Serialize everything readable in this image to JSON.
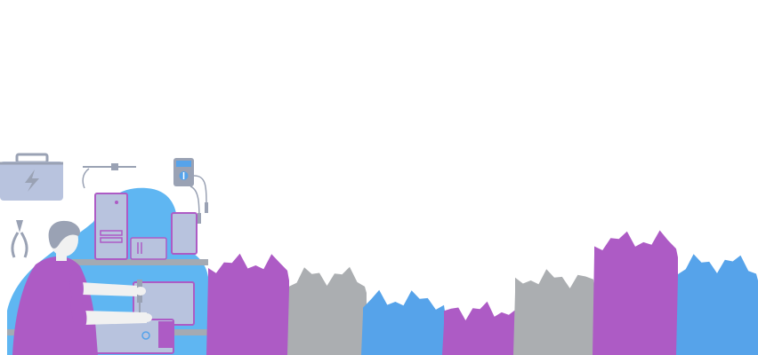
{
  "colors": {
    "purple": "#ad5bc5",
    "gray": "#abaeb1",
    "blue": "#56a3ea",
    "sky_blob": "#5fb6f2",
    "device_fill": "#b8c3de",
    "device_stroke": "#ad5bc5",
    "shelf": "#a4aab3",
    "skin": "#f1f1f1",
    "hair": "#9aa2b4",
    "toolbox": "#b8c3de",
    "tool_line": "#9aa2b4"
  },
  "illustration": {
    "icons": [
      "toolbox-icon",
      "lightning-bolt-icon",
      "soldering-iron-icon",
      "multimeter-icon",
      "pliers-icon",
      "computer-tower-icon",
      "monitor-icon"
    ]
  },
  "brush_strokes": [
    {
      "color": "purple"
    },
    {
      "color": "gray"
    },
    {
      "color": "blue"
    },
    {
      "color": "purple"
    },
    {
      "color": "gray"
    },
    {
      "color": "purple"
    },
    {
      "color": "blue"
    }
  ]
}
